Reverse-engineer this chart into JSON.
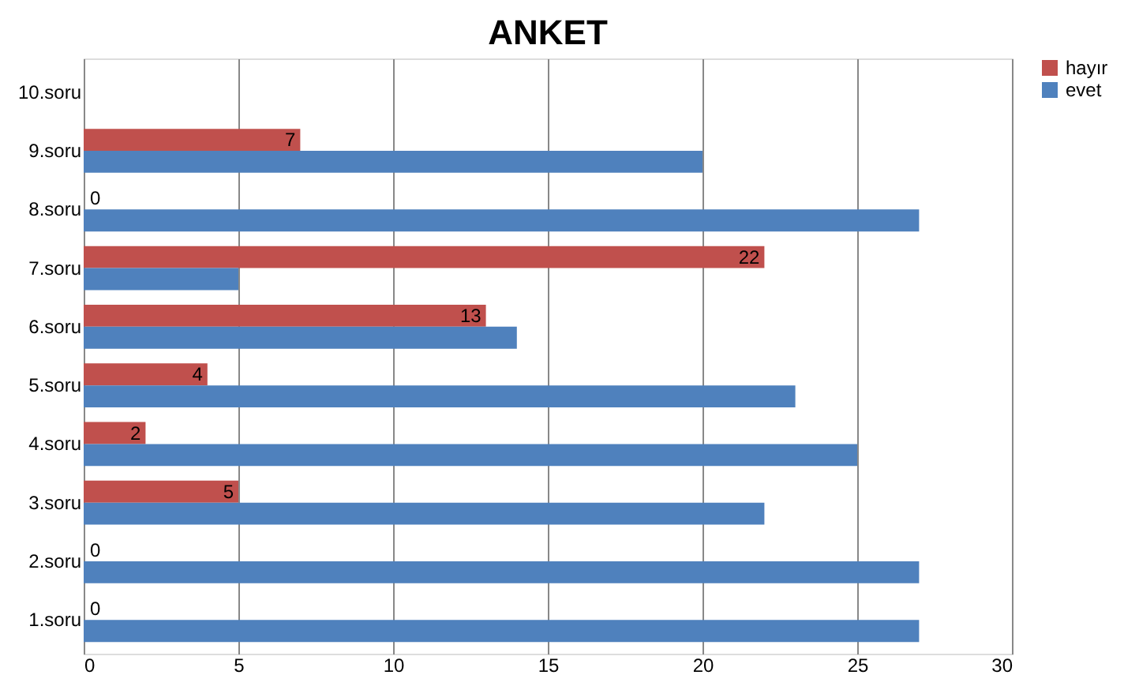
{
  "chart_data": {
    "type": "bar",
    "title": "ANKET",
    "orientation": "horizontal",
    "categories": [
      "10.soru",
      "9.soru",
      "8.soru",
      "7.soru",
      "6.soru",
      "5.soru",
      "4.soru",
      "3.soru",
      "2.soru",
      "1.soru"
    ],
    "series": [
      {
        "name": "hayır",
        "color": "#c0504d",
        "values": [
          null,
          7,
          0,
          22,
          13,
          4,
          2,
          5,
          0,
          0
        ],
        "value_labels": [
          null,
          "7",
          "0",
          "22",
          "13",
          "4",
          "2",
          "5",
          "0",
          "0"
        ]
      },
      {
        "name": "evet",
        "color": "#4f81bd",
        "values": [
          null,
          20,
          27,
          5,
          14,
          23,
          25,
          22,
          27,
          27
        ]
      }
    ],
    "xlim": [
      0,
      30
    ],
    "xticks": [
      0,
      5,
      10,
      15,
      20,
      25,
      30
    ],
    "grid": "x",
    "legend": "right"
  }
}
